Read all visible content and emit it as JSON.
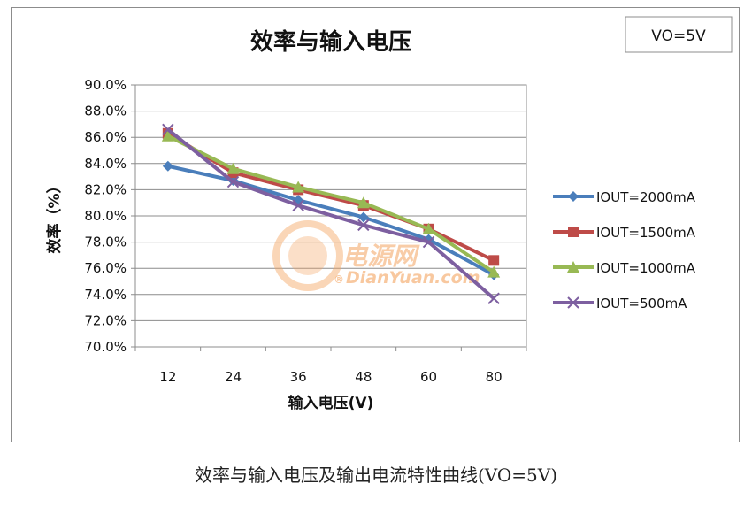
{
  "chart_data": {
    "type": "line",
    "title": "效率与输入电压",
    "xlabel": "输入电压(V)",
    "ylabel": "效率（%）",
    "categories": [
      "12",
      "24",
      "36",
      "48",
      "60",
      "80"
    ],
    "ylim": [
      70.0,
      90.0
    ],
    "yticks": [
      "90.0%",
      "88.0%",
      "86.0%",
      "84.0%",
      "82.0%",
      "80.0%",
      "78.0%",
      "76.0%",
      "74.0%",
      "72.0%",
      "70.0%"
    ],
    "grid": true,
    "legend_position": "right",
    "annotation": "VO=5V",
    "series": [
      {
        "name": "IOUT=2000mA",
        "color": "#4a7ebb",
        "marker": "diamond",
        "values": [
          83.8,
          82.7,
          81.2,
          79.9,
          78.2,
          75.5
        ]
      },
      {
        "name": "IOUT=1500mA",
        "color": "#be4b48",
        "marker": "square",
        "values": [
          86.3,
          83.3,
          82.0,
          80.8,
          79.0,
          76.6
        ]
      },
      {
        "name": "IOUT=1000mA",
        "color": "#98b954",
        "marker": "triangle",
        "values": [
          86.1,
          83.6,
          82.2,
          81.0,
          79.0,
          75.7
        ]
      },
      {
        "name": "IOUT=500mA",
        "color": "#7d5fa0",
        "marker": "x",
        "values": [
          86.6,
          82.6,
          80.8,
          79.3,
          78.0,
          73.7
        ]
      }
    ]
  },
  "watermark": {
    "cn": "电源网",
    "en": "DianYuan.com",
    "registered": "®",
    "color": "#f4a460"
  },
  "caption": "效率与输入电压及输出电流特性曲线(VO=5V)"
}
